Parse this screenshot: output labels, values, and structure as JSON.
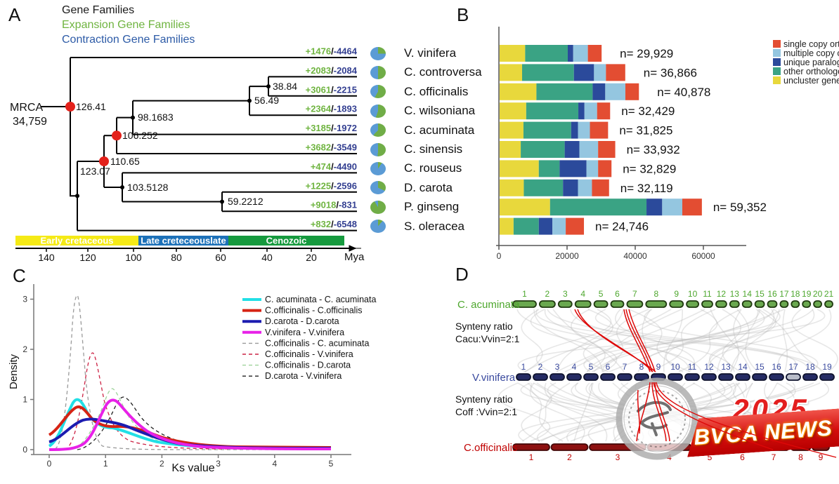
{
  "panel_a": {
    "label": "A",
    "legend": [
      {
        "label": "Gene Families",
        "color": "#1a1a1a"
      },
      {
        "label": "Expansion Gene Families",
        "color": "#6fb440"
      },
      {
        "label": "Contraction Gene Families",
        "color": "#2d5ba7"
      }
    ],
    "mrca_label": "MRCA",
    "mrca_count": "34,759",
    "separator": "/",
    "expansion_color": "#6fb440",
    "contraction_color": "#333f91",
    "node_ages": {
      "root": "126.41",
      "n123": "123.07",
      "n110": "110.65",
      "n106": "106.252",
      "n98": "98.1683",
      "n56": "56.49",
      "n38": "38.84",
      "n103": "103.5128",
      "n59": "59.2212"
    },
    "tips": [
      {
        "name": "V. vinifera",
        "expansion": "+1476",
        "contraction": "-4464"
      },
      {
        "name": "C. controversa",
        "expansion": "+2083",
        "contraction": "-2084"
      },
      {
        "name": "C. officinalis",
        "expansion": "+3061",
        "contraction": "-2215"
      },
      {
        "name": "C. wilsoniana",
        "expansion": "+2364",
        "contraction": "-1893"
      },
      {
        "name": "C. acuminata",
        "expansion": "+3185",
        "contraction": "-1972"
      },
      {
        "name": "C. sinensis",
        "expansion": "+3682",
        "contraction": "-3549"
      },
      {
        "name": "C. rouseus",
        "expansion": "+474",
        "contraction": "-4490"
      },
      {
        "name": "D. carota",
        "expansion": "+1225",
        "contraction": "-2596"
      },
      {
        "name": "P. ginseng",
        "expansion": "+9018",
        "contraction": "-831"
      },
      {
        "name": "S. oleracea",
        "expansion": "+832",
        "contraction": "-6548"
      }
    ],
    "pie_colors": {
      "expansion": "#70ad47",
      "contraction": "#5b9bd5"
    },
    "timeline": {
      "eras": [
        {
          "label": "Early cretaceous",
          "color": "#f5ea16"
        },
        {
          "label": "Late creteceouslate",
          "color": "#1d71b8"
        },
        {
          "label": "Cenozoic",
          "color": "#169a3e"
        }
      ],
      "ticks": [
        "140",
        "120",
        "100",
        "80",
        "60",
        "40",
        "20"
      ],
      "unit": "Mya"
    }
  },
  "panel_b": {
    "label": "B",
    "legend": [
      {
        "label": "single copy orthologous",
        "color": "#e34d32"
      },
      {
        "label": "multiple copy orthologous",
        "color": "#94c6e0"
      },
      {
        "label": "unique  paralogous",
        "color": "#2b4a9b"
      },
      {
        "label": "other  orthologous",
        "color": "#3aa384"
      },
      {
        "label": "uncluster genes",
        "color": "#e8d83c"
      }
    ]
  },
  "chart_data": [
    {
      "type": "bar",
      "orientation": "horizontal",
      "stacked": true,
      "categories": [
        "V. vinifera",
        "C. controversa",
        "C. officinalis",
        "C. wilsoniana",
        "C. acuminata",
        "C. sinensis",
        "C. rouseus",
        "D. carota",
        "P. ginseng",
        "S. oleracea"
      ],
      "series": [
        {
          "name": "uncluster genes",
          "color": "#e8d83c",
          "values": [
            7500,
            6600,
            10800,
            7800,
            7000,
            6200,
            11500,
            7100,
            14800,
            4100
          ]
        },
        {
          "name": "other orthologous",
          "color": "#3aa384",
          "values": [
            12500,
            15200,
            16500,
            15300,
            14000,
            12900,
            6100,
            11500,
            28300,
            7400
          ]
        },
        {
          "name": "unique paralogous",
          "color": "#2b4a9b",
          "values": [
            1600,
            5900,
            3700,
            1800,
            2000,
            4300,
            7900,
            4400,
            4600,
            4000
          ]
        },
        {
          "name": "multiple copy orthologous",
          "color": "#94c6e0",
          "values": [
            4300,
            3500,
            5900,
            3700,
            3500,
            5500,
            3400,
            4100,
            5900,
            3900
          ]
        },
        {
          "name": "single copy orthologous",
          "color": "#e34d32",
          "values": [
            4029,
            5666,
            3978,
            3829,
            5325,
            5032,
            3929,
            5019,
            5752,
            5346
          ]
        }
      ],
      "totals": [
        29929,
        36866,
        40878,
        32429,
        31825,
        33932,
        32829,
        32119,
        59352,
        24746
      ],
      "totals_labels": [
        "n= 29,929",
        "n= 36,866",
        "n= 40,878",
        "n= 32,429",
        "n= 31,825",
        "n= 33,932",
        "n= 32,829",
        "n= 32,119",
        "n= 59,352",
        "n= 24,746"
      ],
      "x_ticks": [
        "0",
        "20000",
        "40000",
        "60000"
      ],
      "xlim": [
        0,
        62000
      ],
      "legend_position": "right"
    },
    {
      "type": "line",
      "xlabel": "Ks value",
      "ylabel": "Density",
      "xlim": [
        0,
        5
      ],
      "ylim": [
        0,
        3.2
      ],
      "x_ticks": [
        "0",
        "1",
        "2",
        "3",
        "4",
        "5"
      ],
      "y_ticks": [
        "0",
        "1",
        "2",
        "3"
      ],
      "series": [
        {
          "name": "C. acuminata - C. acuminata",
          "color": "#22dfe6",
          "style": "solid",
          "points": [
            [
              0,
              0.06
            ],
            [
              0.25,
              0.45
            ],
            [
              0.45,
              0.95
            ],
            [
              0.7,
              0.5
            ],
            [
              1.0,
              0.44
            ],
            [
              1.5,
              0.25
            ],
            [
              2,
              0.1
            ],
            [
              3,
              0.05
            ],
            [
              5,
              0.03
            ]
          ]
        },
        {
          "name": "C.officinalis - C.officinalis",
          "color": "#d62314",
          "style": "solid",
          "points": [
            [
              0,
              0.3
            ],
            [
              0.25,
              0.55
            ],
            [
              0.5,
              0.84
            ],
            [
              0.8,
              0.5
            ],
            [
              1.2,
              0.46
            ],
            [
              1.8,
              0.2
            ],
            [
              2.5,
              0.08
            ],
            [
              5,
              0.03
            ]
          ]
        },
        {
          "name": "D.carota - D.carota",
          "color": "#1c1cb0",
          "style": "solid",
          "points": [
            [
              0,
              0.15
            ],
            [
              0.4,
              0.45
            ],
            [
              0.75,
              0.6
            ],
            [
              1.2,
              0.55
            ],
            [
              1.8,
              0.3
            ],
            [
              2.5,
              0.12
            ],
            [
              5,
              0.02
            ]
          ]
        },
        {
          "name": "V.vinifera - V.vinifera",
          "color": "#e821e8",
          "style": "solid",
          "points": [
            [
              0,
              0
            ],
            [
              0.5,
              0.05
            ],
            [
              0.8,
              0.5
            ],
            [
              1.05,
              0.97
            ],
            [
              1.4,
              0.65
            ],
            [
              2,
              0.25
            ],
            [
              3,
              0.08
            ],
            [
              5,
              0.02
            ]
          ]
        },
        {
          "name": "C.officinalis - C. acuminata",
          "color": "#9a9a9a",
          "style": "dashed",
          "points": [
            [
              0.1,
              0
            ],
            [
              0.3,
              1.0
            ],
            [
              0.45,
              3.1
            ],
            [
              0.6,
              1.2
            ],
            [
              0.9,
              0.2
            ],
            [
              1.5,
              0.05
            ],
            [
              3,
              0.01
            ]
          ]
        },
        {
          "name": "C.officinalis - V.vinifera",
          "color": "#cc2244",
          "style": "dashed",
          "points": [
            [
              0.3,
              0
            ],
            [
              0.5,
              0.5
            ],
            [
              0.75,
              1.95
            ],
            [
              1.0,
              0.9
            ],
            [
              1.4,
              0.35
            ],
            [
              2,
              0.12
            ],
            [
              4,
              0.02
            ]
          ]
        },
        {
          "name": "C.officinalis - D.carota",
          "color": "#9fd39b",
          "style": "dashed",
          "points": [
            [
              0.4,
              0
            ],
            [
              0.8,
              0.6
            ],
            [
              1.1,
              1.22
            ],
            [
              1.5,
              0.6
            ],
            [
              2,
              0.25
            ],
            [
              3,
              0.06
            ],
            [
              5,
              0.01
            ]
          ]
        },
        {
          "name": "D.carota - V.vinifera",
          "color": "#222222",
          "style": "dashed",
          "points": [
            [
              0.5,
              0
            ],
            [
              0.9,
              0.5
            ],
            [
              1.3,
              1.05
            ],
            [
              1.7,
              0.7
            ],
            [
              2.2,
              0.3
            ],
            [
              3,
              0.08
            ],
            [
              4,
              0.03
            ]
          ]
        }
      ]
    }
  ],
  "panel_c": {
    "label": "C"
  },
  "panel_d": {
    "label": "D",
    "genomes": [
      {
        "name": "C. acuminata",
        "label_color": "#4ea72e",
        "chrom_fill": "#6aa84f",
        "chromosomes": [
          "1",
          "2",
          "3",
          "4",
          "5",
          "6",
          "7",
          "8",
          "9",
          "10",
          "11",
          "12",
          "13",
          "14",
          "15",
          "16",
          "17",
          "18",
          "19",
          "20",
          "21"
        ]
      },
      {
        "name": "V.vinifera",
        "label_color": "#39499e",
        "chrom_fill": "#252b63",
        "chromosomes": [
          "1",
          "2",
          "3",
          "4",
          "5",
          "6",
          "7",
          "8",
          "9",
          "10",
          "11",
          "12",
          "13",
          "14",
          "15",
          "16",
          "17",
          "18",
          "19"
        ]
      },
      {
        "name": "C.officinalis",
        "label_color": "#c00000",
        "chrom_fill": "#8c1010",
        "chromosomes": [
          "1",
          "2",
          "3",
          "4",
          "5",
          "6",
          "7",
          "8",
          "9"
        ]
      }
    ],
    "synteny_notes": [
      {
        "line1": "Synteny ratio",
        "line2": "Cacu:Vvin=2:1"
      },
      {
        "line1": "Synteny ratio",
        "line2": "Coff :Vvin=2:1"
      }
    ],
    "highlight_color": "#dd0808",
    "watermark": {
      "year": "2025",
      "banner": "BVCA NEWS"
    }
  }
}
